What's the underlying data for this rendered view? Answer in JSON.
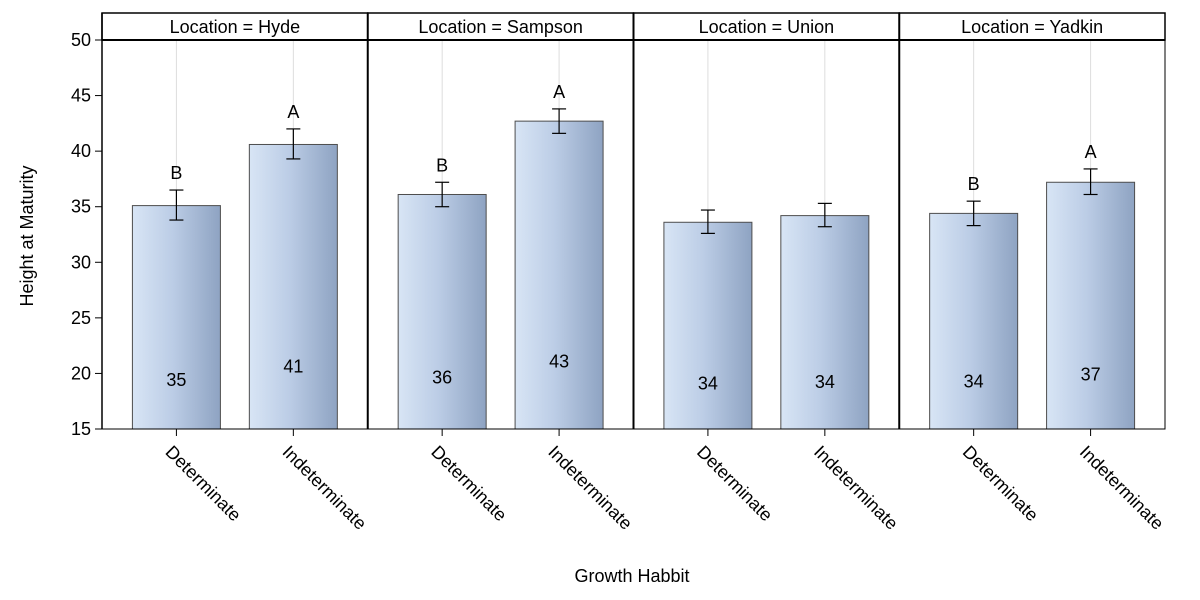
{
  "chart_data": {
    "type": "bar",
    "xlabel": "Growth Habbit",
    "ylabel": "Height at Maturity",
    "ylim": [
      15,
      50
    ],
    "yticks": [
      15,
      20,
      25,
      30,
      35,
      40,
      45,
      50
    ],
    "categories": [
      "Determinate",
      "Indeterminate"
    ],
    "grid": "vertical lines at categories",
    "colors": {
      "bar_light": "#d6e3f3",
      "bar_dark": "#8aa0c0",
      "bar_edge": "#4d4d4d",
      "grid": "#dddddd"
    },
    "panels": [
      {
        "header": "Location = Hyde",
        "values": [
          35.1,
          40.6
        ],
        "err_low": [
          33.8,
          39.3
        ],
        "err_high": [
          36.5,
          42.0
        ],
        "value_labels": [
          "35",
          "41"
        ],
        "letters": [
          "B",
          "A"
        ]
      },
      {
        "header": "Location = Sampson",
        "values": [
          36.1,
          42.7
        ],
        "err_low": [
          35.0,
          41.6
        ],
        "err_high": [
          37.2,
          43.8
        ],
        "value_labels": [
          "36",
          "43"
        ],
        "letters": [
          "B",
          "A"
        ]
      },
      {
        "header": "Location = Union",
        "values": [
          33.6,
          34.2
        ],
        "err_low": [
          32.6,
          33.2
        ],
        "err_high": [
          34.7,
          35.3
        ],
        "value_labels": [
          "34",
          "34"
        ],
        "letters": [
          "",
          ""
        ]
      },
      {
        "header": "Location = Yadkin",
        "values": [
          34.4,
          37.2
        ],
        "err_low": [
          33.3,
          36.1
        ],
        "err_high": [
          35.5,
          38.4
        ],
        "value_labels": [
          "34",
          "37"
        ],
        "letters": [
          "B",
          "A"
        ]
      }
    ]
  }
}
